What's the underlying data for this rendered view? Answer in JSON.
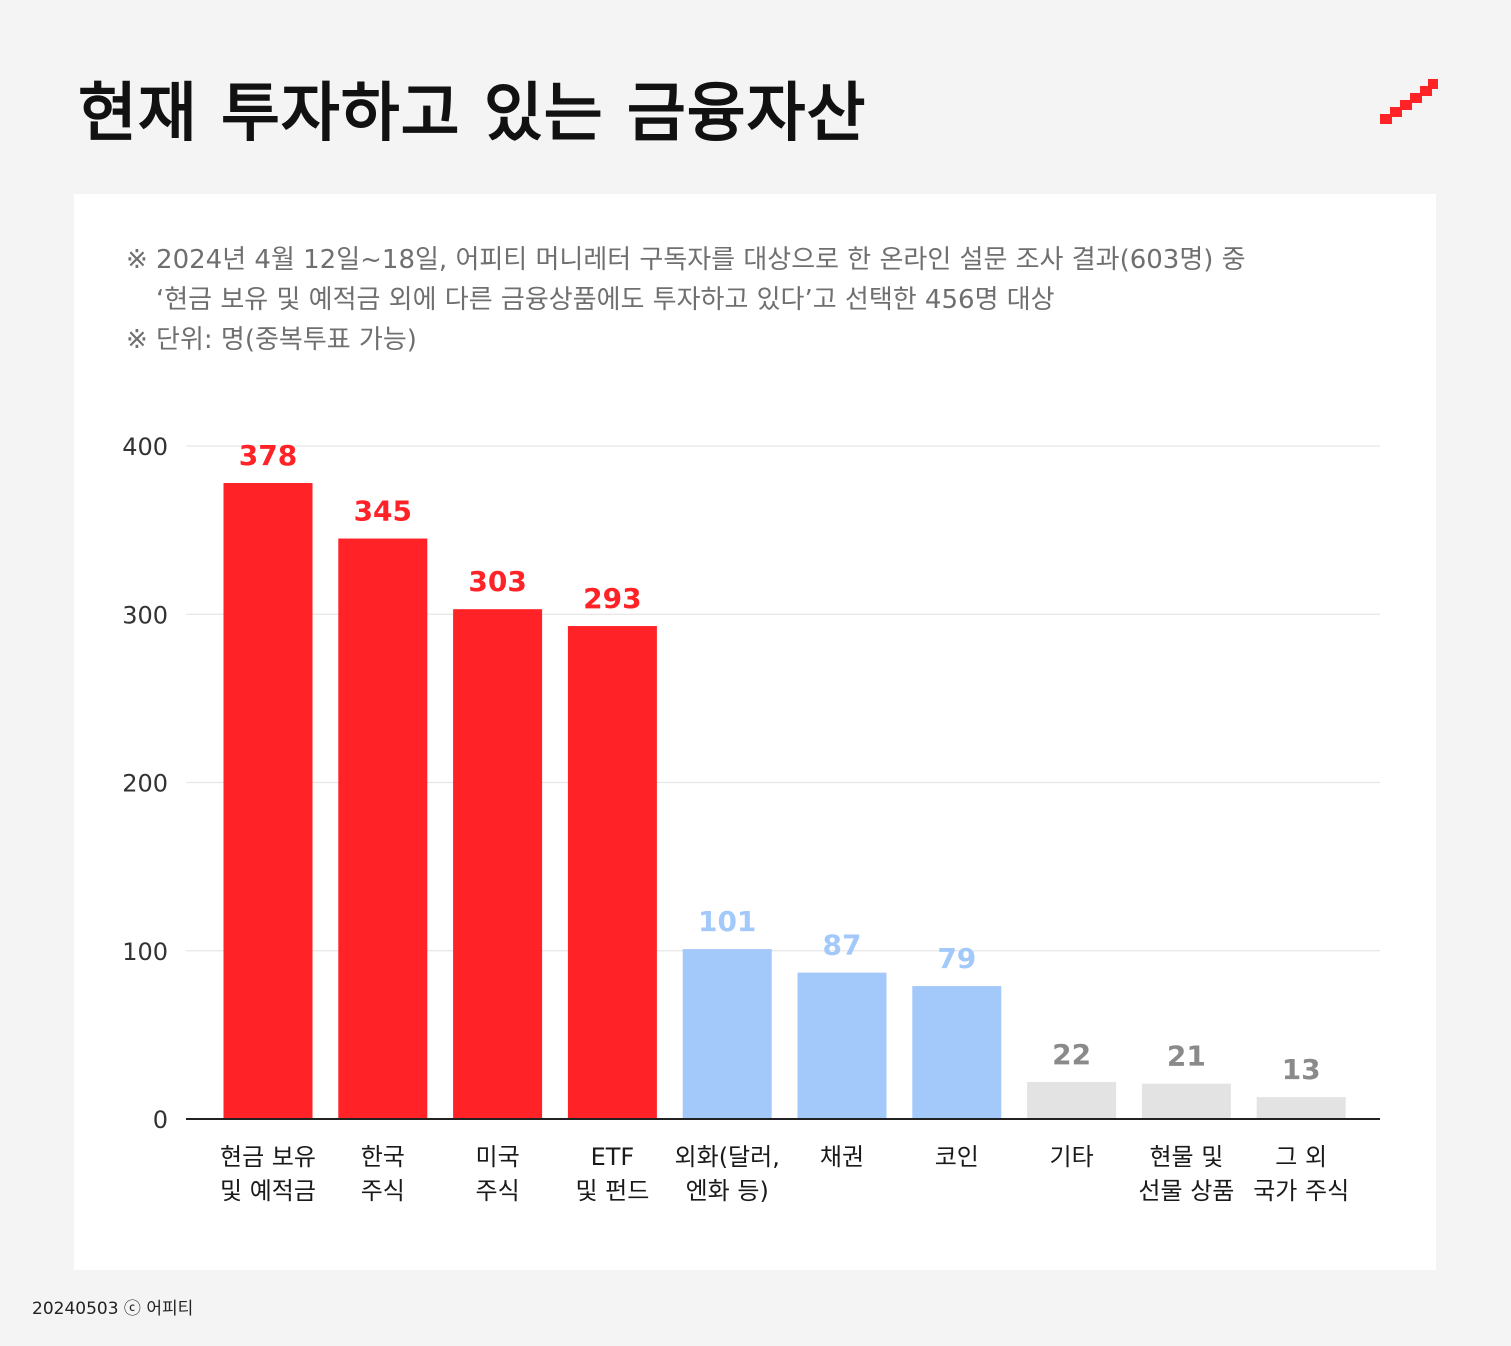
{
  "title": "현재 투자하고 있는 금융자산",
  "notes": [
    "※ 2024년 4월 12일~18일, 어피티 머니레터 구독자를 대상으로 한 온라인 설문 조사 결과(603명) 중",
    "‘현금 보유 및 예적금 외에 다른 금융상품에도 투자하고 있다’고 선택한 456명 대상",
    "※ 단위: 명(중복투표 가능)"
  ],
  "footer": "20240503 ⓒ 어피티",
  "logo_icon": "stairs-logo-icon",
  "colors": {
    "accent": "#ff2226",
    "blue": "#a3c9fb",
    "gray": "#e3e3e3",
    "gray_label": "#8a8a8a"
  },
  "chart_data": {
    "type": "bar",
    "categories": [
      [
        "현금 보유",
        "및 예적금"
      ],
      [
        "한국",
        "주식"
      ],
      [
        "미국",
        "주식"
      ],
      [
        "ETF",
        "및 펀드"
      ],
      [
        "외화(달러,",
        "엔화 등)"
      ],
      [
        "채권"
      ],
      [
        "코인"
      ],
      [
        "기타"
      ],
      [
        "현물 및",
        "선물 상품"
      ],
      [
        "그 외",
        "국가 주식"
      ]
    ],
    "values": [
      378,
      345,
      303,
      293,
      101,
      87,
      79,
      22,
      21,
      13
    ],
    "color_groups": [
      "accent",
      "accent",
      "accent",
      "accent",
      "blue",
      "blue",
      "blue",
      "gray",
      "gray",
      "gray"
    ],
    "yticks": [
      0,
      100,
      200,
      300,
      400
    ],
    "ylim": [
      0,
      400
    ],
    "grid": true,
    "title": "",
    "xlabel": "",
    "ylabel": ""
  }
}
